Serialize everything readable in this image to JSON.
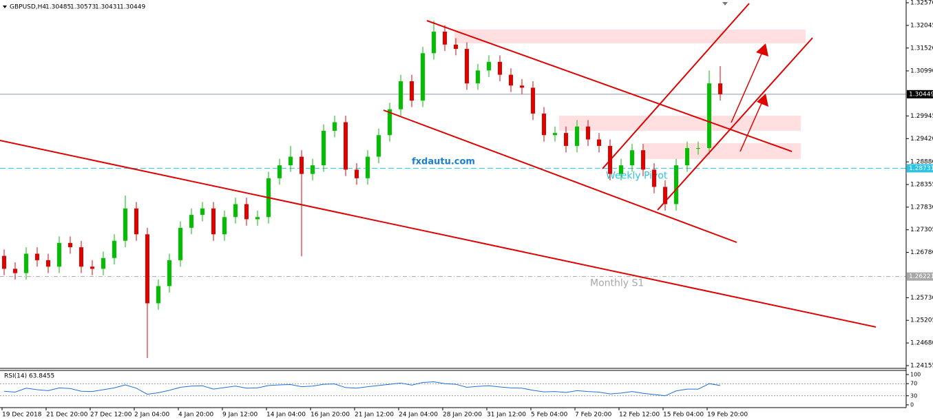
{
  "chart_data": {
    "type": "candlestick",
    "symbol": "GBPUSD,H4",
    "header_ohlc": [
      1.30485,
      1.30573,
      1.30431,
      1.30449
    ],
    "watermark": "fxdautu.com",
    "categories": [
      "19 Dec 2018",
      null,
      null,
      null,
      "21 Dec 20:00",
      null,
      null,
      null,
      "27 Dec 12:00",
      null,
      null,
      null,
      "2 Jan 04:00",
      null,
      null,
      null,
      "4 Jan 20:00",
      null,
      null,
      null,
      "9 Jan 12:00",
      null,
      null,
      null,
      "14 Jan 04:00",
      null,
      null,
      null,
      "16 Jan 20:00",
      null,
      null,
      null,
      "21 Jan 12:00",
      null,
      null,
      null,
      "24 Jan 04:00",
      null,
      null,
      null,
      "28 Jan 20:00",
      null,
      null,
      null,
      "31 Jan 12:00",
      null,
      null,
      null,
      "5 Feb 04:00",
      null,
      null,
      null,
      "7 Feb 20:00",
      null,
      null,
      null,
      "12 Feb 12:00",
      null,
      null,
      null,
      "15 Feb 04:00",
      null,
      null,
      null,
      "19 Feb 20:00",
      null
    ],
    "open": [
      1.267,
      1.264,
      1.263,
      1.2675,
      1.266,
      1.2645,
      1.27,
      1.269,
      1.2645,
      1.264,
      1.2665,
      1.2705,
      1.278,
      1.272,
      1.256,
      1.26,
      1.266,
      1.2735,
      1.2765,
      1.278,
      1.272,
      1.276,
      1.279,
      1.2755,
      1.276,
      1.285,
      1.288,
      1.29,
      1.286,
      1.288,
      1.296,
      1.298,
      1.287,
      1.285,
      1.29,
      1.295,
      1.301,
      1.3075,
      1.303,
      1.314,
      1.319,
      1.316,
      1.315,
      1.307,
      1.31,
      1.312,
      1.309,
      1.3065,
      1.306,
      1.3,
      1.295,
      1.2955,
      1.2925,
      1.297,
      1.294,
      1.2925,
      1.286,
      1.288,
      1.2915,
      1.287,
      1.283,
      1.279,
      1.288,
      1.292,
      1.292,
      1.307
    ],
    "high": [
      1.2685,
      1.2655,
      1.269,
      1.269,
      1.2675,
      1.2715,
      1.2715,
      1.2705,
      1.266,
      1.268,
      1.272,
      1.281,
      1.2795,
      1.2735,
      1.2615,
      1.2675,
      1.275,
      1.278,
      1.2795,
      1.2795,
      1.2775,
      1.2805,
      1.2805,
      1.2775,
      1.2865,
      1.2895,
      1.2925,
      1.2915,
      1.2895,
      1.2975,
      1.2995,
      1.2995,
      1.2885,
      1.2915,
      1.2965,
      1.3025,
      1.309,
      1.309,
      1.3155,
      1.3215,
      1.3205,
      1.3175,
      1.3165,
      1.3115,
      1.3135,
      1.3135,
      1.3105,
      1.308,
      1.3075,
      1.3015,
      1.297,
      1.297,
      1.2985,
      1.2985,
      1.2955,
      1.294,
      1.2895,
      1.293,
      1.293,
      1.2885,
      1.2845,
      1.2895,
      1.2935,
      1.2935,
      1.31,
      1.311
    ],
    "low": [
      1.2625,
      1.2615,
      1.2615,
      1.2645,
      1.263,
      1.263,
      1.2675,
      1.263,
      1.2625,
      1.2625,
      1.265,
      1.269,
      1.2705,
      1.2433,
      1.2545,
      1.2585,
      1.2645,
      1.272,
      1.275,
      1.2705,
      1.2705,
      1.2745,
      1.274,
      1.274,
      1.2745,
      1.2835,
      1.2865,
      1.2669,
      1.2845,
      1.2865,
      1.2945,
      1.2855,
      1.2835,
      1.2835,
      1.2885,
      1.2935,
      1.2995,
      1.3015,
      1.3015,
      1.3125,
      1.3145,
      1.3135,
      1.3055,
      1.3055,
      1.3085,
      1.3075,
      1.305,
      1.3045,
      1.2985,
      1.2935,
      1.2935,
      1.291,
      1.291,
      1.2925,
      1.291,
      1.2845,
      1.2845,
      1.2865,
      1.2855,
      1.2815,
      1.2775,
      1.2775,
      1.2865,
      1.2905,
      1.2905,
      1.303
    ],
    "close": [
      1.264,
      1.263,
      1.2675,
      1.266,
      1.2645,
      1.27,
      1.269,
      1.2645,
      1.264,
      1.2665,
      1.2705,
      1.278,
      1.272,
      1.256,
      1.26,
      1.266,
      1.2735,
      1.2765,
      1.278,
      1.272,
      1.276,
      1.279,
      1.2755,
      1.276,
      1.285,
      1.288,
      1.29,
      1.286,
      1.288,
      1.296,
      1.298,
      1.287,
      1.285,
      1.29,
      1.295,
      1.301,
      1.3075,
      1.303,
      1.314,
      1.319,
      1.316,
      1.315,
      1.307,
      1.31,
      1.312,
      1.309,
      1.3065,
      1.306,
      1.3,
      1.295,
      1.2955,
      1.2925,
      1.297,
      1.294,
      1.2925,
      1.286,
      1.288,
      1.2915,
      1.287,
      1.283,
      1.279,
      1.288,
      1.292,
      1.292,
      1.307,
      1.30449
    ],
    "up_color": "#00c000",
    "down_color": "#e00000",
    "ylim": [
      1.24155,
      1.3257
    ],
    "yticks": [
      {
        "value": 1.3257,
        "label": "1.32570"
      },
      {
        "value": 1.32045,
        "label": "1.32045"
      },
      {
        "value": 1.3152,
        "label": "1.31520"
      },
      {
        "value": 1.3099,
        "label": "1.30990"
      },
      {
        "value": 1.29945,
        "label": "1.29945"
      },
      {
        "value": 1.2942,
        "label": "1.29420"
      },
      {
        "value": 1.2888,
        "label": "1.28880"
      },
      {
        "value": 1.28355,
        "label": "1.28355"
      },
      {
        "value": 1.2783,
        "label": "1.27830"
      },
      {
        "value": 1.27305,
        "label": "1.27305"
      },
      {
        "value": 1.2678,
        "label": "1.26780"
      },
      {
        "value": 1.2573,
        "label": "1.25730"
      },
      {
        "value": 1.25205,
        "label": "1.25205"
      },
      {
        "value": 1.2468,
        "label": "1.24680"
      },
      {
        "value": 1.24155,
        "label": "1.24155"
      }
    ],
    "levels": [
      {
        "value": 1.30449,
        "color": "#8a9ba8"
      },
      {
        "value": 1.28731,
        "text": "Weekly Pivot",
        "color": "#29c5e6"
      },
      {
        "value": 1.26221,
        "text": "Monthly S1",
        "color": "#a8a8a8"
      }
    ],
    "rsi": {
      "title": "RSI(14) 63.8455",
      "color": "#1e6fd9",
      "ylim": [
        0,
        100
      ],
      "yticks": [
        100,
        70,
        30,
        0
      ],
      "values": [
        45,
        42,
        55,
        50,
        47,
        56,
        54,
        45,
        44,
        50,
        56,
        66,
        55,
        35,
        40,
        48,
        58,
        62,
        63,
        52,
        57,
        62,
        55,
        56,
        64,
        66,
        67,
        60,
        62,
        68,
        69,
        57,
        55,
        60,
        64,
        68,
        72,
        65,
        74,
        76,
        70,
        68,
        58,
        61,
        63,
        59,
        56,
        55,
        48,
        43,
        44,
        41,
        47,
        44,
        42,
        36,
        39,
        44,
        38,
        34,
        30,
        46,
        52,
        52,
        70,
        63.8455
      ]
    }
  }
}
